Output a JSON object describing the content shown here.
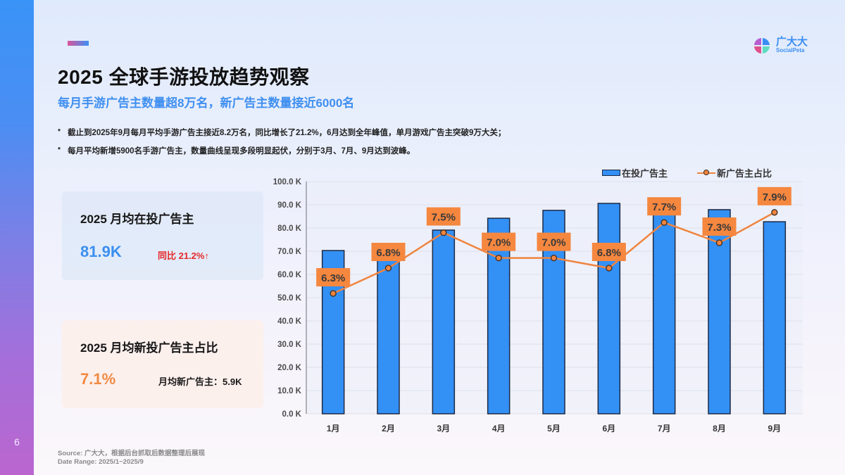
{
  "sidebar": {
    "page_number": "6"
  },
  "header": {
    "title": "2025 全球手游投放趋势观察",
    "subtitle": "每月手游广告主数量超8万名，新广告主数量接近6000名"
  },
  "logo": {
    "cn": "广大大",
    "en": "SocialPeta"
  },
  "bullets": [
    "截止到2025年9月每月平均手游广告主接近8.2万名，同比增长了21.2%，6月达到全年峰值，单月游戏广告主突破9万大关；",
    "每月平均新增5900名手游广告主，数量曲线呈现多段明显起伏，分别于3月、7月、9月达到波峰。"
  ],
  "cards": [
    {
      "title": "2025 月均在投广告主",
      "value": "81.9K",
      "side": "同比 21.2%↑"
    },
    {
      "title": "2025 月均新投广告主占比",
      "value": "7.1%",
      "side": "月均新广告主：5.9K"
    }
  ],
  "footer": {
    "source": "Source:  广大大，根据后台抓取后数据整理后展现",
    "date_range": "Date Range:  2025/1~2025/9"
  },
  "colors": {
    "bar": "#3390f5",
    "line": "#f0843f",
    "label_bg": "#f5873f",
    "accent_blue": "#3b8ff0",
    "accent_red": "#e52828"
  },
  "chart_data": {
    "type": "bar",
    "title": "",
    "categories": [
      "1月",
      "2月",
      "3月",
      "4月",
      "5月",
      "6月",
      "7月",
      "8月",
      "9月"
    ],
    "series": [
      {
        "name": "在投广告主",
        "type": "bar",
        "values": [
          70.3,
          68.0,
          79.1,
          84.2,
          87.6,
          90.6,
          87.0,
          87.9,
          82.7
        ],
        "unit": "K"
      },
      {
        "name": "新广告主占比",
        "type": "line",
        "values": [
          6.3,
          6.8,
          7.5,
          7.0,
          7.0,
          6.8,
          7.7,
          7.3,
          7.9
        ],
        "unit": "%",
        "labels": [
          "6.3%",
          "6.8%",
          "7.5%",
          "7.0%",
          "7.0%",
          "6.8%",
          "7.7%",
          "7.3%",
          "7.9%"
        ]
      }
    ],
    "y_ticks": [
      "0.0 K",
      "10.0 K",
      "20.0 K",
      "30.0 K",
      "40.0 K",
      "50.0 K",
      "60.0 K",
      "70.0 K",
      "80.0 K",
      "90.0 K",
      "100.0 K"
    ],
    "ylim": [
      0,
      100
    ],
    "xlabel": "",
    "ylabel": "",
    "legend_position": "top-right",
    "grid": true
  }
}
